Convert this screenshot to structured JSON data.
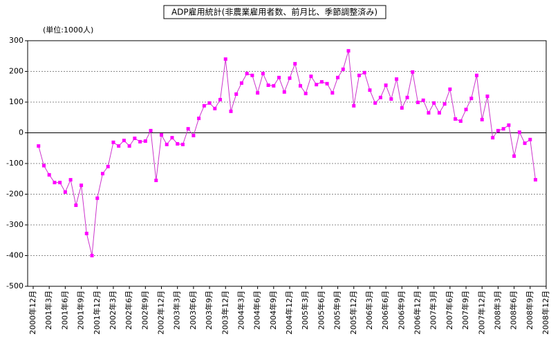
{
  "chart_data": {
    "type": "line",
    "title": "ADP雇用統計(非農業雇用者数、前月比、季節調整済み)",
    "unit_label": "(単位:1000人)",
    "color": "#ff00ff",
    "line_color": "#cc33cc",
    "grid": true,
    "categories": [
      "2000年12月",
      null,
      null,
      "2001年3月",
      null,
      null,
      "2001年6月",
      null,
      null,
      "2001年9月",
      null,
      null,
      "2001年12月",
      null,
      null,
      "2002年3月",
      null,
      null,
      "2002年6月",
      null,
      null,
      "2002年9月",
      null,
      null,
      "2002年12月",
      null,
      null,
      "2003年3月",
      null,
      null,
      "2003年6月",
      null,
      null,
      "2003年9月",
      null,
      null,
      "2003年12月",
      null,
      null,
      "2004年3月",
      null,
      null,
      "2004年6月",
      null,
      null,
      "2004年9月",
      null,
      null,
      "2004年12月",
      null,
      null,
      "2005年3月",
      null,
      null,
      "2005年6月",
      null,
      null,
      "2005年9月",
      null,
      null,
      "2005年12月",
      null,
      null,
      "2006年3月",
      null,
      null,
      "2006年6月",
      null,
      null,
      "2006年9月",
      null,
      null,
      "2006年12月",
      null,
      null,
      "2007年3月",
      null,
      null,
      "2007年6月",
      null,
      null,
      "2007年9月",
      null,
      null,
      "2007年12月",
      null,
      null,
      "2008年3月",
      null,
      null,
      "2008年6月",
      null,
      null,
      "2008年9月",
      null,
      null,
      "2008年12月"
    ],
    "values": [
      null,
      -43,
      -107,
      -137,
      -162,
      -162,
      -193,
      -153,
      -236,
      -171,
      -328,
      -400,
      -213,
      -133,
      -110,
      -31,
      -43,
      -25,
      -43,
      -18,
      -29,
      -27,
      7,
      -155,
      -7,
      -38,
      -16,
      -36,
      -38,
      13,
      -9,
      47,
      88,
      97,
      79,
      108,
      240,
      70,
      126,
      162,
      193,
      187,
      130,
      193,
      155,
      153,
      180,
      133,
      178,
      225,
      153,
      128,
      184,
      157,
      166,
      160,
      130,
      180,
      207,
      267,
      88,
      187,
      196,
      139,
      97,
      115,
      155,
      110,
      175,
      81,
      115,
      198,
      99,
      106,
      65,
      97,
      65,
      94,
      142,
      45,
      38,
      76,
      112,
      187,
      43,
      119,
      -16,
      7,
      13,
      25,
      -76,
      2,
      -34,
      -22,
      -153,
      null,
      null
    ],
    "ylim": [
      -500,
      300
    ],
    "yticks": [
      -500,
      -400,
      -300,
      -200,
      -100,
      0,
      100,
      200,
      300
    ]
  }
}
